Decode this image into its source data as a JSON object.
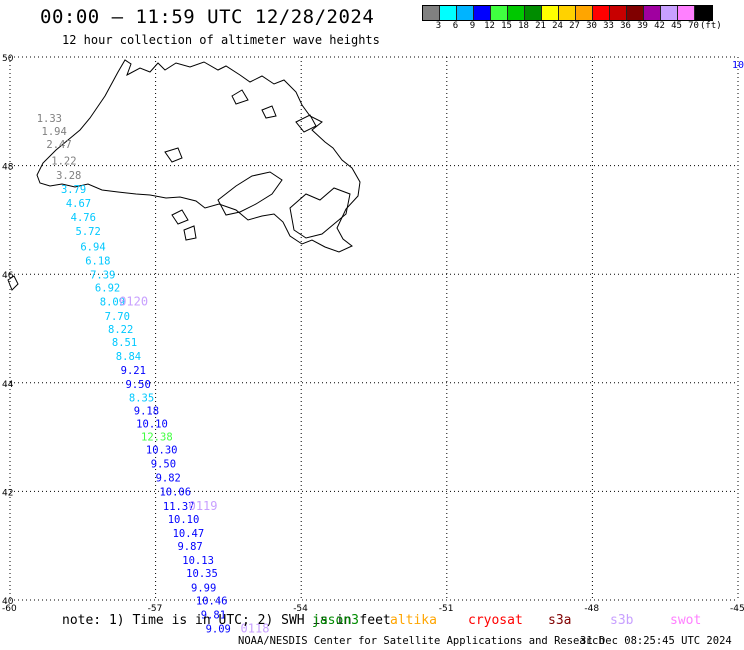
{
  "header": {
    "title": "00:00 – 11:59 UTC 12/28/2024",
    "subtitle": "12 hour collection of altimeter wave heights"
  },
  "colorbar": {
    "colors": [
      "#808080",
      "#00ffff",
      "#00b4ff",
      "#0000ff",
      "#40ff40",
      "#00c800",
      "#008c00",
      "#ffff00",
      "#ffd200",
      "#ffa500",
      "#ff0000",
      "#c80000",
      "#800000",
      "#a000a0",
      "#c8a0ff",
      "#ff80ff",
      "#000000"
    ],
    "labels": [
      "3",
      "6",
      "9",
      "12",
      "15",
      "18",
      "21",
      "24",
      "27",
      "30",
      "33",
      "36",
      "39",
      "42",
      "45",
      "70"
    ],
    "unit": "(ft)"
  },
  "map": {
    "lat_ticks": [
      "50",
      "48",
      "46",
      "44",
      "42",
      "40"
    ],
    "lon_ticks": [
      "-60",
      "-57",
      "-54",
      "-51",
      "-48",
      "-45"
    ],
    "lon_range": [
      -60,
      -45
    ],
    "lat_range": [
      40,
      50
    ],
    "grid": true,
    "edge_label": "10",
    "swh_readings": [
      {
        "v": "1.33",
        "lon": -59.45,
        "lat": 48.8,
        "color": "#808080"
      },
      {
        "v": "1.94",
        "lon": -59.35,
        "lat": 48.56,
        "color": "#808080"
      },
      {
        "v": "2.47",
        "lon": -59.25,
        "lat": 48.32,
        "color": "#808080"
      },
      {
        "v": "1.22",
        "lon": -59.15,
        "lat": 48.02,
        "color": "#808080"
      },
      {
        "v": "3.28",
        "lon": -59.05,
        "lat": 47.75,
        "color": "#808080"
      },
      {
        "v": "3.79",
        "lon": -58.95,
        "lat": 47.5,
        "color": "#00c8ff"
      },
      {
        "v": "4.67",
        "lon": -58.85,
        "lat": 47.24,
        "color": "#00c8ff"
      },
      {
        "v": "4.76",
        "lon": -58.75,
        "lat": 46.98,
        "color": "#00c8ff"
      },
      {
        "v": "5.72",
        "lon": -58.65,
        "lat": 46.72,
        "color": "#00c8ff"
      },
      {
        "v": "6.94",
        "lon": -58.55,
        "lat": 46.44,
        "color": "#00c8ff"
      },
      {
        "v": "6.18",
        "lon": -58.45,
        "lat": 46.18,
        "color": "#00c8ff"
      },
      {
        "v": "7.39",
        "lon": -58.35,
        "lat": 45.92,
        "color": "#00c8ff"
      },
      {
        "v": "6.92",
        "lon": -58.25,
        "lat": 45.68,
        "color": "#00c8ff"
      },
      {
        "v": "8.09",
        "lon": -58.15,
        "lat": 45.42,
        "color": "#00c8ff"
      },
      {
        "v": "7.70",
        "lon": -58.05,
        "lat": 45.16,
        "color": "#00c8ff"
      },
      {
        "v": "8.22",
        "lon": -57.98,
        "lat": 44.92,
        "color": "#00c8ff"
      },
      {
        "v": "8.51",
        "lon": -57.9,
        "lat": 44.68,
        "color": "#00c8ff"
      },
      {
        "v": "8.84",
        "lon": -57.82,
        "lat": 44.42,
        "color": "#00c8ff"
      },
      {
        "v": "9.21",
        "lon": -57.72,
        "lat": 44.16,
        "color": "#0000ff"
      },
      {
        "v": "9.50",
        "lon": -57.62,
        "lat": 43.9,
        "color": "#0000ff"
      },
      {
        "v": "8.35",
        "lon": -57.55,
        "lat": 43.66,
        "color": "#00c8ff"
      },
      {
        "v": "9.18",
        "lon": -57.45,
        "lat": 43.42,
        "color": "#0000ff"
      },
      {
        "v": "10.10",
        "lon": -57.4,
        "lat": 43.18,
        "color": "#0000ff"
      },
      {
        "v": "12.38",
        "lon": -57.3,
        "lat": 42.94,
        "color": "#40ff40"
      },
      {
        "v": "10.30",
        "lon": -57.2,
        "lat": 42.7,
        "color": "#0000ff"
      },
      {
        "v": "9.50",
        "lon": -57.1,
        "lat": 42.44,
        "color": "#0000ff"
      },
      {
        "v": "9.82",
        "lon": -57.0,
        "lat": 42.18,
        "color": "#0000ff"
      },
      {
        "v": "10.06",
        "lon": -56.92,
        "lat": 41.92,
        "color": "#0000ff"
      },
      {
        "v": "11.37",
        "lon": -56.85,
        "lat": 41.66,
        "color": "#0000ff"
      },
      {
        "v": "10.10",
        "lon": -56.75,
        "lat": 41.42,
        "color": "#0000ff"
      },
      {
        "v": "10.47",
        "lon": -56.65,
        "lat": 41.16,
        "color": "#0000ff"
      },
      {
        "v": "9.87",
        "lon": -56.55,
        "lat": 40.92,
        "color": "#0000ff"
      },
      {
        "v": "10.13",
        "lon": -56.45,
        "lat": 40.66,
        "color": "#0000ff"
      },
      {
        "v": "10.35",
        "lon": -56.37,
        "lat": 40.42,
        "color": "#0000ff"
      },
      {
        "v": "9.99",
        "lon": -56.27,
        "lat": 40.16,
        "color": "#0000ff"
      },
      {
        "v": "10.46",
        "lon": -56.17,
        "lat": 39.92,
        "color": "#0000ff"
      },
      {
        "v": "9.81",
        "lon": -56.07,
        "lat": 39.66,
        "color": "#0000ff"
      },
      {
        "v": "9.09",
        "lon": -55.97,
        "lat": 39.4,
        "color": "#0000ff"
      }
    ],
    "pass_labels": [
      {
        "t": "0120",
        "lon": -57.75,
        "lat": 45.42,
        "color": "#c8a0ff"
      },
      {
        "t": "0119",
        "lon": -56.32,
        "lat": 41.66,
        "color": "#c8a0ff"
      },
      {
        "t": "0118",
        "lon": -55.25,
        "lat": 39.4,
        "color": "#c8a0ff"
      }
    ]
  },
  "footer": {
    "note": "note: 1) Time is in UTC; 2) SWH is in feet",
    "satellites": [
      {
        "name": "jason3",
        "color": "#008c00"
      },
      {
        "name": "altika",
        "color": "#ffa500"
      },
      {
        "name": "cryosat",
        "color": "#ff0000"
      },
      {
        "name": "s3a",
        "color": "#800000"
      },
      {
        "name": "s3b",
        "color": "#c8a0ff"
      },
      {
        "name": "swot",
        "color": "#ff80ff"
      }
    ],
    "credit": "NOAA/NESDIS Center for Satellite Applications and Research",
    "timestamp": "31 Dec 08:25:45 UTC 2024"
  }
}
